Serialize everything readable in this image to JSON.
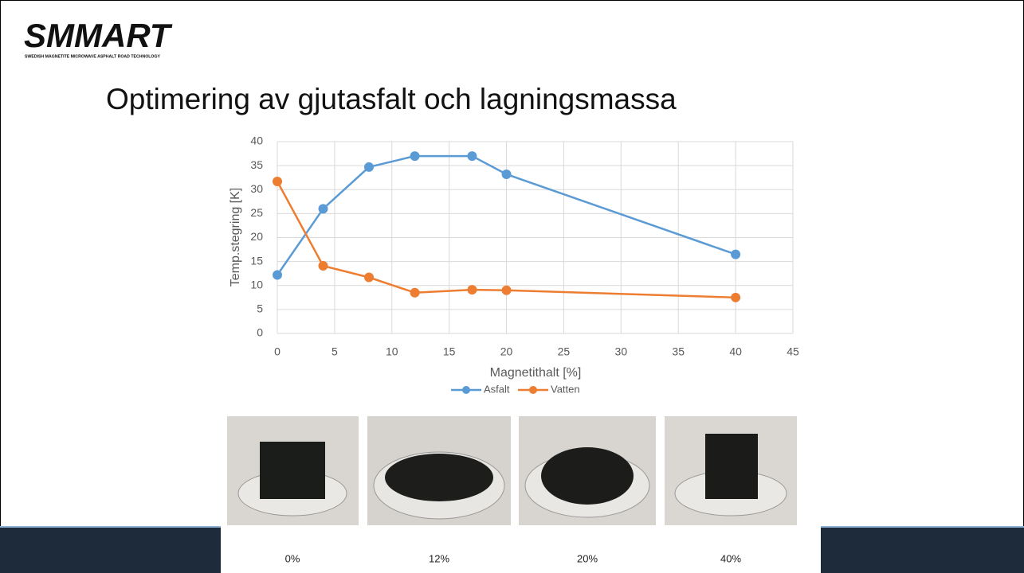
{
  "logo": {
    "name": "SMMART",
    "tagline": "SWEDISH MAGNETITE MICROWAVE ASPHALT ROAD TECHNOLOGY"
  },
  "chart_data": {
    "type": "line",
    "title": "Optimering av gjutasfalt och lagningsmassa",
    "x_label": "Magnetithalt [%]",
    "y_label": "Temp.stegring [K]",
    "x": [
      0,
      4,
      8,
      12,
      17,
      20,
      40
    ],
    "series": [
      {
        "name": "Asfalt",
        "color": "#5b9bd5",
        "values": [
          12.2,
          26,
          34.7,
          37,
          37,
          33.2,
          16.5
        ]
      },
      {
        "name": "Vatten",
        "color": "#ed7d31",
        "values": [
          31.7,
          14.1,
          11.7,
          8.5,
          9.1,
          9.0,
          7.5
        ]
      }
    ],
    "xlim": [
      0,
      45
    ],
    "xticks": [
      0,
      5,
      10,
      15,
      20,
      25,
      30,
      35,
      40,
      45
    ],
    "ylim": [
      0,
      40
    ],
    "yticks": [
      0,
      5,
      10,
      15,
      20,
      25,
      30,
      35,
      40
    ],
    "grid": true,
    "legend": "bottom"
  },
  "photos": {
    "captions": [
      "0%",
      "12%",
      "20%",
      "40%"
    ]
  }
}
